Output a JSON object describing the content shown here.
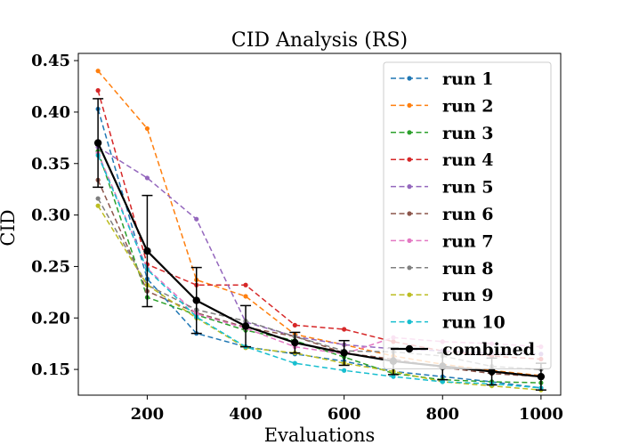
{
  "chart_data": {
    "type": "line",
    "title": "CID Analysis (RS)",
    "xlabel": "Evaluations",
    "ylabel": "CID",
    "xlim": [
      60,
      1040
    ],
    "ylim": [
      0.125,
      0.457
    ],
    "xticks": [
      200,
      400,
      600,
      800,
      1000
    ],
    "yticks": [
      0.15,
      0.2,
      0.25,
      0.3,
      0.35,
      0.4,
      0.45
    ],
    "ytick_labels": [
      "0.15",
      "0.20",
      "0.25",
      "0.30",
      "0.35",
      "0.40",
      "0.45"
    ],
    "legend_position": "top-right",
    "grid": false,
    "x": [
      100,
      200,
      300,
      400,
      500,
      600,
      700,
      800,
      900,
      1000
    ],
    "series": [
      {
        "name": "run 1",
        "color": "#1f77b4",
        "style": "dashed",
        "values": [
          0.403,
          0.238,
          0.185,
          0.172,
          0.165,
          0.158,
          0.148,
          0.143,
          0.138,
          0.132
        ]
      },
      {
        "name": "run 2",
        "color": "#ff7f0e",
        "style": "dashed",
        "values": [
          0.44,
          0.384,
          0.237,
          0.221,
          0.184,
          0.174,
          0.163,
          0.155,
          0.149,
          0.144
        ]
      },
      {
        "name": "run 3",
        "color": "#2ca02c",
        "style": "dashed",
        "values": [
          0.362,
          0.22,
          0.203,
          0.188,
          0.178,
          0.162,
          0.146,
          0.14,
          0.138,
          0.137
        ]
      },
      {
        "name": "run 4",
        "color": "#d62728",
        "style": "dashed",
        "values": [
          0.421,
          0.252,
          0.232,
          0.232,
          0.193,
          0.189,
          0.177,
          0.168,
          0.163,
          0.16
        ]
      },
      {
        "name": "run 5",
        "color": "#9467bd",
        "style": "dashed",
        "values": [
          0.366,
          0.336,
          0.296,
          0.196,
          0.182,
          0.174,
          0.17,
          0.168,
          0.166,
          0.165
        ]
      },
      {
        "name": "run 6",
        "color": "#8c564b",
        "style": "dashed",
        "values": [
          0.334,
          0.226,
          0.205,
          0.191,
          0.182,
          0.166,
          0.16,
          0.152,
          0.146,
          0.143
        ]
      },
      {
        "name": "run 7",
        "color": "#e377c2",
        "style": "dashed",
        "values": [
          0.36,
          0.248,
          0.204,
          0.19,
          0.172,
          0.165,
          0.181,
          0.177,
          0.175,
          0.172
        ]
      },
      {
        "name": "run 8",
        "color": "#7f7f7f",
        "style": "dashed",
        "values": [
          0.316,
          0.232,
          0.208,
          0.197,
          0.182,
          0.168,
          0.167,
          0.163,
          0.153,
          0.15
        ]
      },
      {
        "name": "run 9",
        "color": "#bcbd22",
        "style": "dashed",
        "values": [
          0.309,
          0.232,
          0.2,
          0.171,
          0.166,
          0.156,
          0.148,
          0.138,
          0.134,
          0.13
        ]
      },
      {
        "name": "run 10",
        "color": "#17becf",
        "style": "dashed",
        "values": [
          0.358,
          0.247,
          0.201,
          0.172,
          0.156,
          0.149,
          0.143,
          0.138,
          0.136,
          0.132
        ]
      },
      {
        "name": "combined",
        "color": "#000000",
        "style": "solid",
        "values": [
          0.37,
          0.265,
          0.217,
          0.192,
          0.176,
          0.166,
          0.158,
          0.153,
          0.148,
          0.143
        ],
        "errors": [
          0.043,
          0.054,
          0.032,
          0.02,
          0.01,
          0.012,
          0.013,
          0.013,
          0.013,
          0.013
        ]
      }
    ]
  }
}
